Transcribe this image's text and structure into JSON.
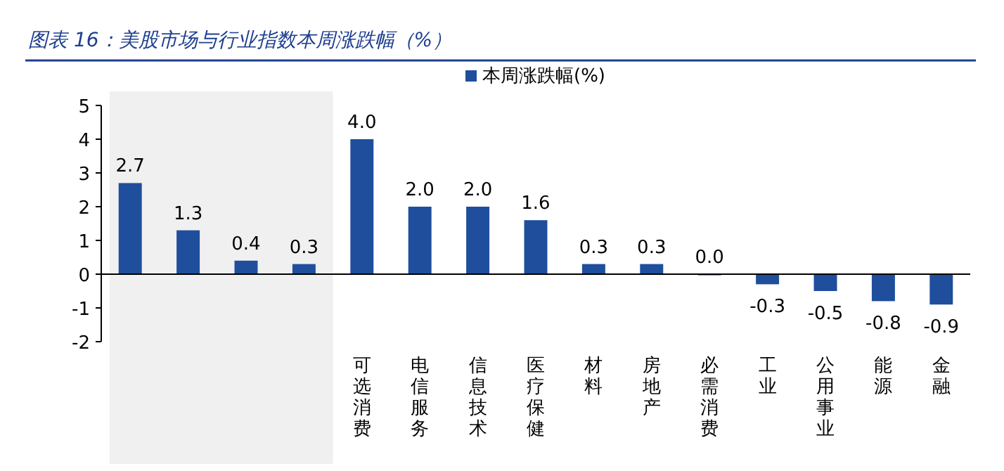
{
  "chart_data": {
    "type": "bar",
    "title": "图表 16：美股市场与行业指数本周涨跌幅（%）",
    "categories": [
      null,
      null,
      null,
      null,
      "可选消费",
      "电信服务",
      "信息技术",
      "医疗保健",
      "材料",
      "房地产",
      "必需消费",
      "工业",
      "公用事业",
      "能源",
      "金融"
    ],
    "series": [
      {
        "name": "本周涨跌幅(%)",
        "color": "#1f4e9c",
        "values": [
          2.7,
          1.3,
          0.4,
          0.3,
          4.0,
          2.0,
          2.0,
          1.6,
          0.3,
          0.3,
          0.0,
          -0.3,
          -0.5,
          -0.8,
          -0.9
        ],
        "value_labels": [
          "2.7",
          "1.3",
          "0.4",
          "0.3",
          "4.0",
          "2.0",
          "2.0",
          "1.6",
          "0.3",
          "0.3",
          "0.0",
          "-0.3",
          "-0.5",
          "-0.8",
          "-0.9"
        ]
      }
    ],
    "ylim": [
      -2,
      5
    ],
    "yticks": [
      -2,
      -1,
      0,
      1,
      2,
      3,
      4,
      5
    ],
    "legend": "top"
  }
}
